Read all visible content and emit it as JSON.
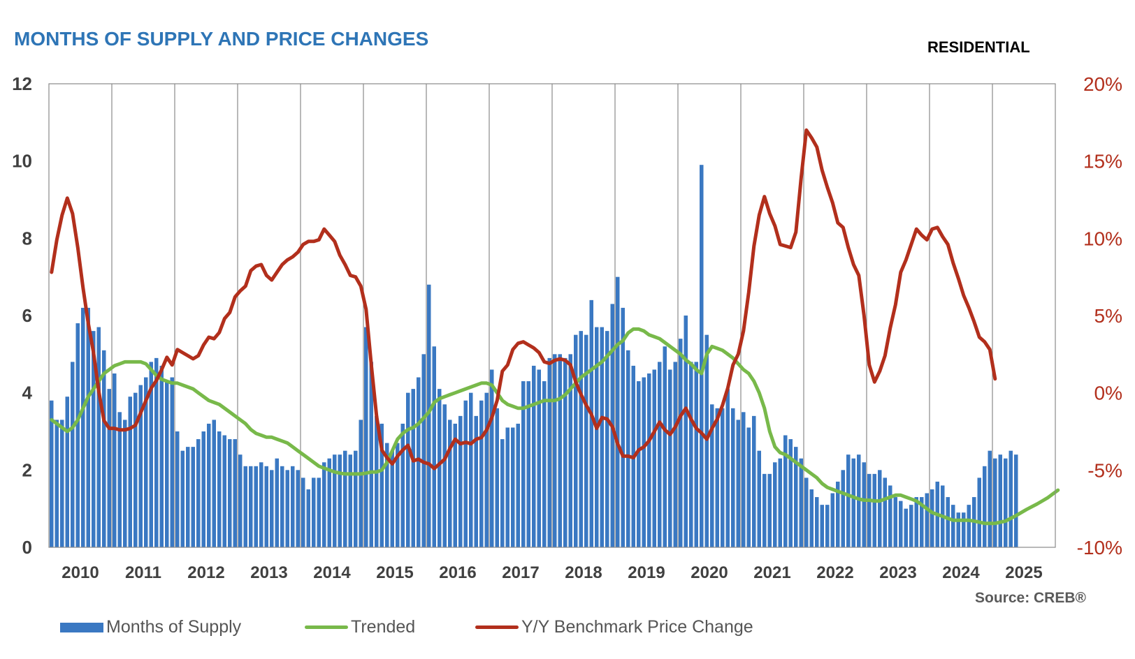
{
  "title": "MONTHS OF SUPPLY AND PRICE CHANGES",
  "subtitle": "RESIDENTIAL",
  "source": "Source: CREB®",
  "legend": {
    "bars": "Months of Supply",
    "trend": "Trended",
    "price": "Y/Y Benchmark Price Change"
  },
  "colors": {
    "bars": "#3a78c2",
    "trend": "#78b94a",
    "price": "#b22f1c",
    "title": "#2e75b6",
    "right_axis": "#b22f1c",
    "grid": "#8a8a8a"
  },
  "chart_data": {
    "type": "bar",
    "x_labels": [
      "2010",
      "2011",
      "2012",
      "2013",
      "2014",
      "2015",
      "2016",
      "2017",
      "2018",
      "2019",
      "2020",
      "2021",
      "2022",
      "2023",
      "2024",
      "2025"
    ],
    "y_left": {
      "ticks": [
        "0",
        "2",
        "4",
        "6",
        "8",
        "10",
        "12"
      ],
      "range": [
        0,
        12
      ]
    },
    "y_right": {
      "ticks": [
        "-10%",
        "-5%",
        "0%",
        "5%",
        "10%",
        "15%",
        "20%"
      ],
      "range": [
        -10,
        20
      ]
    },
    "grid": "vertical",
    "series": [
      {
        "name": "Months of Supply",
        "type": "bar",
        "axis": "left",
        "values": [
          3.8,
          3.3,
          3.3,
          3.9,
          4.8,
          5.8,
          6.2,
          6.2,
          5.6,
          5.7,
          5.1,
          4.1,
          4.5,
          3.5,
          3.3,
          3.9,
          4.0,
          4.2,
          4.4,
          4.8,
          4.9,
          4.7,
          4.3,
          4.4,
          3.0,
          2.5,
          2.6,
          2.6,
          2.8,
          3.0,
          3.2,
          3.3,
          3.0,
          2.9,
          2.8,
          2.8,
          2.4,
          2.1,
          2.1,
          2.1,
          2.2,
          2.1,
          2.0,
          2.3,
          2.1,
          2.0,
          2.1,
          2.0,
          1.8,
          1.5,
          1.8,
          1.8,
          2.2,
          2.3,
          2.4,
          2.4,
          2.5,
          2.4,
          2.5,
          3.3,
          5.7,
          4.8,
          3.4,
          3.2,
          2.7,
          2.5,
          2.7,
          3.2,
          4.0,
          4.1,
          4.4,
          5.0,
          6.8,
          5.2,
          4.1,
          3.7,
          3.3,
          3.2,
          3.4,
          3.8,
          4.0,
          3.4,
          3.8,
          4.0,
          4.6,
          3.6,
          2.8,
          3.1,
          3.1,
          3.2,
          4.3,
          4.3,
          4.7,
          4.6,
          4.3,
          4.9,
          5.0,
          5.0,
          4.9,
          5.0,
          5.5,
          5.6,
          5.5,
          6.4,
          5.7,
          5.7,
          5.6,
          6.3,
          7.0,
          6.2,
          5.1,
          4.7,
          4.3,
          4.4,
          4.5,
          4.6,
          4.8,
          5.2,
          4.6,
          4.8,
          5.4,
          6.0,
          4.8,
          4.8,
          9.9,
          5.5,
          3.7,
          3.6,
          3.6,
          4.1,
          3.6,
          3.3,
          3.5,
          3.1,
          3.4,
          2.5,
          1.9,
          1.9,
          2.2,
          2.3,
          2.9,
          2.8,
          2.6,
          2.3,
          1.8,
          1.5,
          1.3,
          1.1,
          1.1,
          1.4,
          1.7,
          2.0,
          2.4,
          2.3,
          2.4,
          2.2,
          1.9,
          1.9,
          2.0,
          1.8,
          1.6,
          1.3,
          1.2,
          1.0,
          1.1,
          1.3,
          1.3,
          1.4,
          1.5,
          1.7,
          1.6,
          1.3,
          1.1,
          0.9,
          0.9,
          1.1,
          1.3,
          1.8,
          2.1,
          2.5,
          2.3,
          2.4,
          2.3,
          2.5,
          2.4
        ]
      },
      {
        "name": "Trended",
        "type": "line",
        "axis": "left",
        "values": [
          3.3,
          3.2,
          3.1,
          3.0,
          3.1,
          3.3,
          3.6,
          3.9,
          4.1,
          4.3,
          4.5,
          4.6,
          4.7,
          4.75,
          4.8,
          4.8,
          4.8,
          4.8,
          4.75,
          4.6,
          4.45,
          4.35,
          4.3,
          4.25,
          4.25,
          4.2,
          4.15,
          4.1,
          4.0,
          3.9,
          3.8,
          3.75,
          3.7,
          3.6,
          3.5,
          3.4,
          3.3,
          3.2,
          3.05,
          2.95,
          2.9,
          2.85,
          2.85,
          2.8,
          2.75,
          2.7,
          2.6,
          2.5,
          2.4,
          2.3,
          2.2,
          2.1,
          2.05,
          2.0,
          1.95,
          1.92,
          1.9,
          1.9,
          1.9,
          1.9,
          1.92,
          1.95,
          1.95,
          2.0,
          2.2,
          2.5,
          2.8,
          2.95,
          3.05,
          3.1,
          3.2,
          3.35,
          3.5,
          3.75,
          3.85,
          3.9,
          3.95,
          4.0,
          4.05,
          4.1,
          4.15,
          4.2,
          4.25,
          4.25,
          4.2,
          4.0,
          3.8,
          3.7,
          3.65,
          3.6,
          3.6,
          3.65,
          3.7,
          3.75,
          3.8,
          3.8,
          3.8,
          3.85,
          3.95,
          4.1,
          4.25,
          4.4,
          4.5,
          4.6,
          4.7,
          4.8,
          4.95,
          5.1,
          5.25,
          5.35,
          5.55,
          5.65,
          5.65,
          5.6,
          5.5,
          5.45,
          5.4,
          5.3,
          5.2,
          5.1,
          5.0,
          4.85,
          4.75,
          4.6,
          4.5,
          5.0,
          5.2,
          5.15,
          5.1,
          5.0,
          4.9,
          4.75,
          4.6,
          4.5,
          4.3,
          4.0,
          3.6,
          3.0,
          2.6,
          2.45,
          2.4,
          2.3,
          2.2,
          2.1,
          2.0,
          1.9,
          1.8,
          1.65,
          1.55,
          1.5,
          1.45,
          1.4,
          1.35,
          1.3,
          1.25,
          1.22,
          1.22,
          1.2,
          1.2,
          1.25,
          1.3,
          1.35,
          1.35,
          1.3,
          1.25,
          1.2,
          1.1,
          1.0,
          0.9,
          0.85,
          0.8,
          0.75,
          0.7,
          0.7,
          0.7,
          0.7,
          0.68,
          0.65,
          0.62,
          0.62,
          0.62,
          0.65,
          0.68,
          0.75,
          0.82,
          0.9,
          0.98,
          1.05,
          1.12,
          1.2,
          1.28,
          1.38,
          1.48
        ]
      },
      {
        "name": "Y/Y Benchmark Price Change",
        "type": "line",
        "axis": "right",
        "values": [
          7.8,
          9.9,
          11.5,
          12.6,
          11.6,
          9.4,
          6.8,
          4.5,
          2.6,
          0.1,
          -1.8,
          -2.3,
          -2.3,
          -2.4,
          -2.4,
          -2.3,
          -2.1,
          -1.3,
          -0.5,
          0.3,
          0.8,
          1.5,
          2.3,
          1.8,
          2.8,
          2.6,
          2.4,
          2.2,
          2.4,
          3.1,
          3.6,
          3.5,
          3.9,
          4.8,
          5.2,
          6.2,
          6.6,
          6.9,
          7.9,
          8.2,
          8.3,
          7.6,
          7.3,
          7.8,
          8.3,
          8.6,
          8.8,
          9.1,
          9.6,
          9.8,
          9.8,
          9.9,
          10.6,
          10.2,
          9.8,
          8.9,
          8.3,
          7.6,
          7.5,
          6.9,
          5.4,
          1.8,
          -1.5,
          -3.7,
          -4.2,
          -4.6,
          -4.1,
          -3.7,
          -3.4,
          -4.4,
          -4.3,
          -4.5,
          -4.6,
          -4.9,
          -4.6,
          -4.3,
          -3.6,
          -3.0,
          -3.3,
          -3.2,
          -3.3,
          -3.0,
          -2.9,
          -2.4,
          -1.6,
          -0.5,
          1.4,
          1.8,
          2.8,
          3.2,
          3.3,
          3.1,
          2.9,
          2.6,
          2.0,
          1.9,
          2.1,
          2.2,
          2.1,
          1.8,
          0.7,
          -0.1,
          -0.8,
          -1.4,
          -2.3,
          -1.6,
          -1.7,
          -2.2,
          -3.3,
          -4.1,
          -4.1,
          -4.2,
          -3.7,
          -3.5,
          -3.1,
          -2.5,
          -1.9,
          -2.4,
          -2.7,
          -2.2,
          -1.5,
          -1.0,
          -1.7,
          -2.3,
          -2.6,
          -3.0,
          -2.3,
          -1.7,
          -0.8,
          0.3,
          1.8,
          2.5,
          4.0,
          6.5,
          9.5,
          11.5,
          12.7,
          11.6,
          10.8,
          9.6,
          9.5,
          9.4,
          10.4,
          13.9,
          17.0,
          16.5,
          15.9,
          14.4,
          13.3,
          12.3,
          11.0,
          10.7,
          9.4,
          8.3,
          7.6,
          5.0,
          1.8,
          0.7,
          1.4,
          2.4,
          4.2,
          5.7,
          7.8,
          8.6,
          9.6,
          10.6,
          10.2,
          9.9,
          10.6,
          10.7,
          10.1,
          9.6,
          8.4,
          7.4,
          6.3,
          5.5,
          4.6,
          3.6,
          3.3,
          2.8,
          0.9
        ]
      }
    ]
  }
}
